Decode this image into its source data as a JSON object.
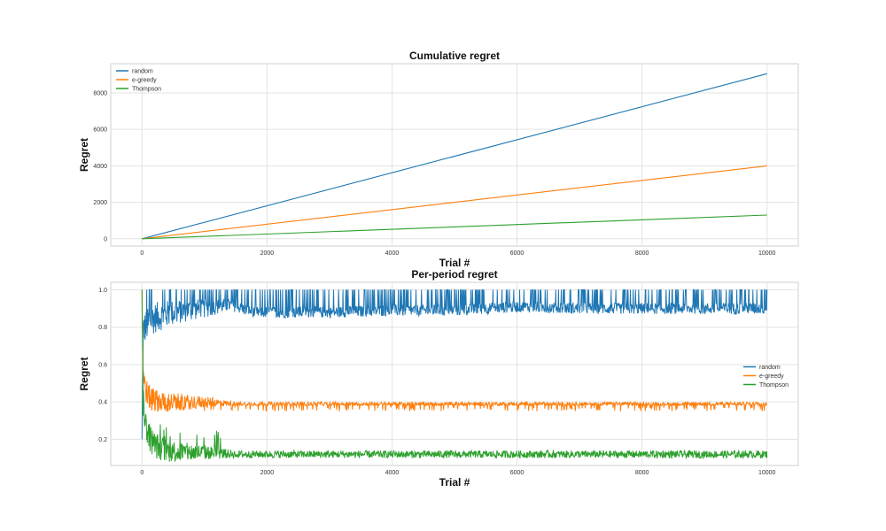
{
  "chart_data": [
    {
      "type": "line",
      "title": "Cumulative regret",
      "xlabel": "Trial #",
      "ylabel": "Regret",
      "xlim": [
        -500,
        10500
      ],
      "ylim": [
        -400,
        9600
      ],
      "xticks": [
        0,
        2000,
        4000,
        6000,
        8000,
        10000
      ],
      "yticks": [
        0,
        2000,
        4000,
        6000,
        8000
      ],
      "grid": true,
      "legend_position": "upper-left",
      "series": [
        {
          "name": "random",
          "color": "#1f77b4",
          "x": [
            0,
            10000
          ],
          "y": [
            0,
            9050
          ]
        },
        {
          "name": "e-greedy",
          "color": "#ff7f0e",
          "x": [
            0,
            10000
          ],
          "y": [
            0,
            4000
          ]
        },
        {
          "name": "Thompson",
          "color": "#2ca02c",
          "x": [
            0,
            10000
          ],
          "y": [
            0,
            1300
          ]
        }
      ]
    },
    {
      "type": "line",
      "title": "Per-period regret",
      "xlabel": "Trial #",
      "ylabel": "Regret",
      "xlim": [
        -500,
        10500
      ],
      "ylim": [
        0.06,
        1.04
      ],
      "xticks": [
        0,
        2000,
        4000,
        6000,
        8000,
        10000
      ],
      "yticks": [
        0.2,
        0.4,
        0.6,
        0.8,
        1.0
      ],
      "grid": true,
      "legend_position": "center-right",
      "series": [
        {
          "name": "random",
          "color": "#1f77b4",
          "x": [
            0,
            20,
            50,
            100,
            200,
            400,
            700,
            1000,
            1400,
            1800,
            2500,
            3000,
            4000,
            5000,
            6000,
            7000,
            8000,
            9000,
            10000
          ],
          "y": [
            0.2,
            0.78,
            0.8,
            0.82,
            0.85,
            0.87,
            0.89,
            0.9,
            0.92,
            0.88,
            0.88,
            0.88,
            0.89,
            0.89,
            0.91,
            0.9,
            0.9,
            0.9,
            0.9
          ],
          "noise_high": 1.0,
          "noise_low_spread": 0.03
        },
        {
          "name": "e-greedy",
          "color": "#ff7f0e",
          "x": [
            0,
            20,
            50,
            100,
            200,
            400,
            700,
            1000,
            1500,
            2000,
            3000,
            4000,
            5000,
            6000,
            7000,
            8000,
            9000,
            10000
          ],
          "y": [
            1.0,
            0.55,
            0.48,
            0.43,
            0.41,
            0.4,
            0.4,
            0.4,
            0.39,
            0.39,
            0.39,
            0.39,
            0.39,
            0.39,
            0.39,
            0.39,
            0.39,
            0.39
          ],
          "noise_low": 0.35,
          "noise_low_spread": 0.01
        },
        {
          "name": "Thompson",
          "color": "#2ca02c",
          "x": [
            0,
            20,
            50,
            100,
            200,
            400,
            700,
            1000,
            1500,
            2000,
            3000,
            4000,
            5000,
            6000,
            7000,
            8000,
            9000,
            10000
          ],
          "y": [
            1.0,
            0.4,
            0.3,
            0.22,
            0.17,
            0.14,
            0.13,
            0.13,
            0.12,
            0.12,
            0.12,
            0.12,
            0.12,
            0.12,
            0.12,
            0.12,
            0.12,
            0.12
          ],
          "noise_low_spread": 0.02
        }
      ]
    }
  ]
}
